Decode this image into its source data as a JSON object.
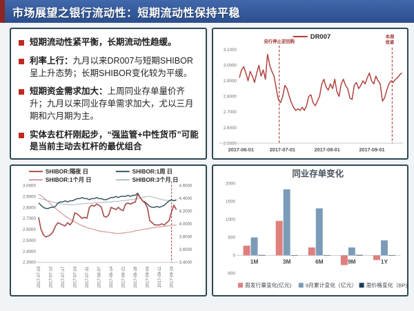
{
  "title": "市场展望之银行流动性：短期流动性保持平稳",
  "colors": {
    "titlebar_blue": "#33599f",
    "title_accent_red": "#8e2424",
    "bullet_red": "#c0281f",
    "panel_border": "#2d4651"
  },
  "bullets": [
    {
      "bold": "短期流动性紧平衡，长期流动性趋缓。",
      "text": ""
    },
    {
      "bold": "利率上行：",
      "text": "九月以来DR007与短期SHIBOR呈上升态势；长期SHIBOR变化较为平缓。"
    },
    {
      "bold": "短期资金需求加大：",
      "text": "上周同业存单量价齐升；九月以来同业存单需求加大，尤以三月期和六月期为主。"
    },
    {
      "bold": "实体去杠杆刚起步，“强监管+中性货币”可能是当前主动去杠杆的最优组合",
      "text": ""
    }
  ],
  "chart_data": [
    {
      "id": "dr007",
      "type": "line",
      "title": "",
      "legend": [
        "DR007"
      ],
      "legend_position": "top-center",
      "grid": false,
      "ylim": [
        2.5,
        3.1
      ],
      "yticks": [
        "3.1000",
        "3.0000",
        "2.9000",
        "2.8000",
        "2.7000",
        "2.6000",
        "2.5000"
      ],
      "xticks": [
        {
          "label": "2017-06-01",
          "pos": 0.01
        },
        {
          "label": "2017-07-01",
          "pos": 0.265
        },
        {
          "label": "2017-08-01",
          "pos": 0.54
        },
        {
          "label": "2017-09-01",
          "pos": 0.815
        }
      ],
      "series": [
        {
          "name": "DR007",
          "color": "#b0413c",
          "axis": "left",
          "values": [
            2.92,
            2.97,
            2.99,
            2.95,
            2.9,
            2.96,
            2.93,
            2.89,
            2.95,
            3.0,
            2.93,
            2.97,
            2.91,
            3.07,
            3.0,
            2.96,
            2.93,
            2.85,
            2.78,
            2.76,
            2.8,
            2.87,
            2.85,
            2.8,
            2.76,
            2.73,
            2.71,
            2.72,
            2.71,
            2.73,
            2.71,
            2.74,
            2.8,
            2.81,
            2.76,
            2.74,
            2.77,
            2.8,
            2.88,
            2.91,
            2.86,
            2.84,
            2.88,
            2.85,
            2.91,
            2.83,
            2.8,
            2.88,
            2.91,
            2.87,
            2.85,
            2.79,
            2.78,
            2.87,
            2.89,
            2.85,
            2.87,
            2.9,
            2.88,
            2.92,
            2.95,
            2.9,
            2.88,
            2.93,
            2.9,
            2.88,
            2.77,
            2.79,
            2.84,
            2.88,
            2.9,
            2.89,
            2.91,
            2.92,
            2.94,
            2.95
          ]
        }
      ],
      "annotations": [
        {
          "lines": [
            "央行停止逆回购"
          ],
          "pos": 0.245,
          "color": "#a23b38"
        },
        {
          "lines": [
            "本周",
            "收紧"
          ],
          "pos": 0.94,
          "color": "#a23b38"
        }
      ]
    },
    {
      "id": "shibor",
      "type": "line",
      "title": "",
      "legend_position": "top",
      "grid": false,
      "ylim_left": [
        2.3,
        3.0
      ],
      "ylim_right": [
        3.4,
        4.6
      ],
      "yticks_left": [
        "3.0000",
        "2.9000",
        "2.8000",
        "2.7000",
        "2.6000",
        "2.5000",
        "2.4000",
        "2.3000"
      ],
      "yticks_right": [
        "4.6000",
        "4.4000",
        "4.2000",
        "4.0000",
        "3.8000",
        "3.6000",
        "3.4000"
      ],
      "xticks": [
        "2017-07-03",
        "2017-07-10",
        "2017-07-17",
        "2017-07-24",
        "2017-07-31",
        "2017-08-07",
        "2017-08-14",
        "2017-08-21",
        "2017-08-28",
        "2017-09-04",
        "2017-09-11",
        "2017-09-18"
      ],
      "vline_pos": 0.965,
      "series": [
        {
          "name": "SHIBOR:隔夜 日",
          "color": "#a8504f",
          "axis": "left",
          "width": 1.7,
          "values": [
            2.71,
            2.6,
            2.55,
            2.53,
            2.54,
            2.55,
            2.58,
            2.63,
            2.66,
            2.65,
            2.64,
            2.63,
            2.66,
            2.64,
            2.67,
            2.75,
            2.74,
            2.72,
            2.7,
            2.71,
            2.7,
            2.8,
            2.82,
            2.81,
            2.83,
            2.82,
            2.8,
            2.72,
            2.71,
            2.73,
            2.8,
            2.79,
            2.78,
            2.8,
            2.78,
            2.77,
            2.83,
            2.84,
            2.83,
            2.84,
            2.85,
            2.92,
            2.89,
            2.86,
            2.84,
            2.8,
            2.68,
            2.66,
            2.64,
            2.64,
            2.64,
            2.65,
            2.64,
            2.66,
            2.68,
            2.76,
            2.82,
            2.78
          ]
        },
        {
          "name": "SHIBOR:1周 日",
          "color": "#3a5563",
          "axis": "left",
          "width": 1.5,
          "values": [
            2.84,
            2.82,
            2.8,
            2.79,
            2.79,
            2.8,
            2.8,
            2.81,
            2.84,
            2.85,
            2.85,
            2.86,
            2.85,
            2.86,
            2.86,
            2.87,
            2.88,
            2.88,
            2.89,
            2.88,
            2.88,
            2.87,
            2.88,
            2.88,
            2.89,
            2.88,
            2.88,
            2.87,
            2.87,
            2.88,
            2.89,
            2.89,
            2.9,
            2.89,
            2.9,
            2.9,
            2.9,
            2.91,
            2.9,
            2.91,
            2.91,
            2.93,
            2.89,
            2.86,
            2.85,
            2.83,
            2.81,
            2.8,
            2.8,
            2.81,
            2.8,
            2.81,
            2.82,
            2.84,
            2.86,
            2.87,
            2.86,
            2.87
          ]
        },
        {
          "name": "SHIBOR:1个月 日",
          "color": "#d2999b",
          "axis": "right",
          "width": 1.2,
          "values": [
            4.46,
            4.44,
            4.41,
            4.38,
            4.35,
            4.31,
            4.27,
            4.24,
            4.21,
            4.18,
            4.15,
            4.12,
            4.1,
            4.07,
            4.05,
            4.03,
            4.01,
            3.99,
            3.97,
            3.96,
            3.94,
            3.93,
            3.92,
            3.91,
            3.9,
            3.89,
            3.88,
            3.88,
            3.87,
            3.87,
            3.86,
            3.86,
            3.85,
            3.85,
            3.85,
            3.86,
            3.86,
            3.87,
            3.87,
            3.88,
            3.89,
            3.9,
            3.9,
            3.91,
            3.92,
            3.92,
            3.93,
            3.94,
            3.94,
            3.95,
            3.95,
            3.96,
            3.96,
            3.97,
            3.97,
            3.98,
            3.98,
            3.98
          ]
        },
        {
          "name": "SHIBOR:3个月 日",
          "color": "#b6bec3",
          "axis": "right",
          "width": 1.2,
          "values": [
            4.4,
            4.39,
            4.38,
            4.37,
            4.36,
            4.35,
            4.34,
            4.33,
            4.32,
            4.32,
            4.31,
            4.31,
            4.3,
            4.3,
            4.3,
            4.3,
            4.31,
            4.31,
            4.31,
            4.32,
            4.32,
            4.32,
            4.32,
            4.33,
            4.33,
            4.33,
            4.33,
            4.34,
            4.34,
            4.34,
            4.34,
            4.35,
            4.35,
            4.35,
            4.36,
            4.36,
            4.37,
            4.37,
            4.38,
            4.38,
            4.39,
            4.39,
            4.4,
            4.41,
            4.42,
            4.43,
            4.43,
            4.42,
            4.41,
            4.4,
            4.39,
            4.38,
            4.37,
            4.37,
            4.36,
            4.36,
            4.36,
            4.36
          ]
        }
      ]
    },
    {
      "id": "cd_change",
      "type": "bar",
      "title": "同业存单变化",
      "categories": [
        "1M",
        "3M",
        "6M",
        "9M",
        "1Y"
      ],
      "ylim": [
        -500,
        2000
      ],
      "yticks": [
        2000,
        1500,
        1000,
        500,
        0,
        -500
      ],
      "legend_position": "bottom",
      "series": [
        {
          "name": "周发行量变化(亿元)",
          "color": "#df7f7e",
          "values": [
            270,
            960,
            220,
            -270,
            -130
          ]
        },
        {
          "name": "9月累计变化（亿元）",
          "color": "#7b9cb9",
          "values": [
            500,
            1840,
            1310,
            220,
            420
          ]
        },
        {
          "name": "周价格变化（BP)",
          "color": "#1f3a57",
          "values": [
            12,
            9,
            7,
            14,
            10
          ]
        }
      ]
    }
  ]
}
